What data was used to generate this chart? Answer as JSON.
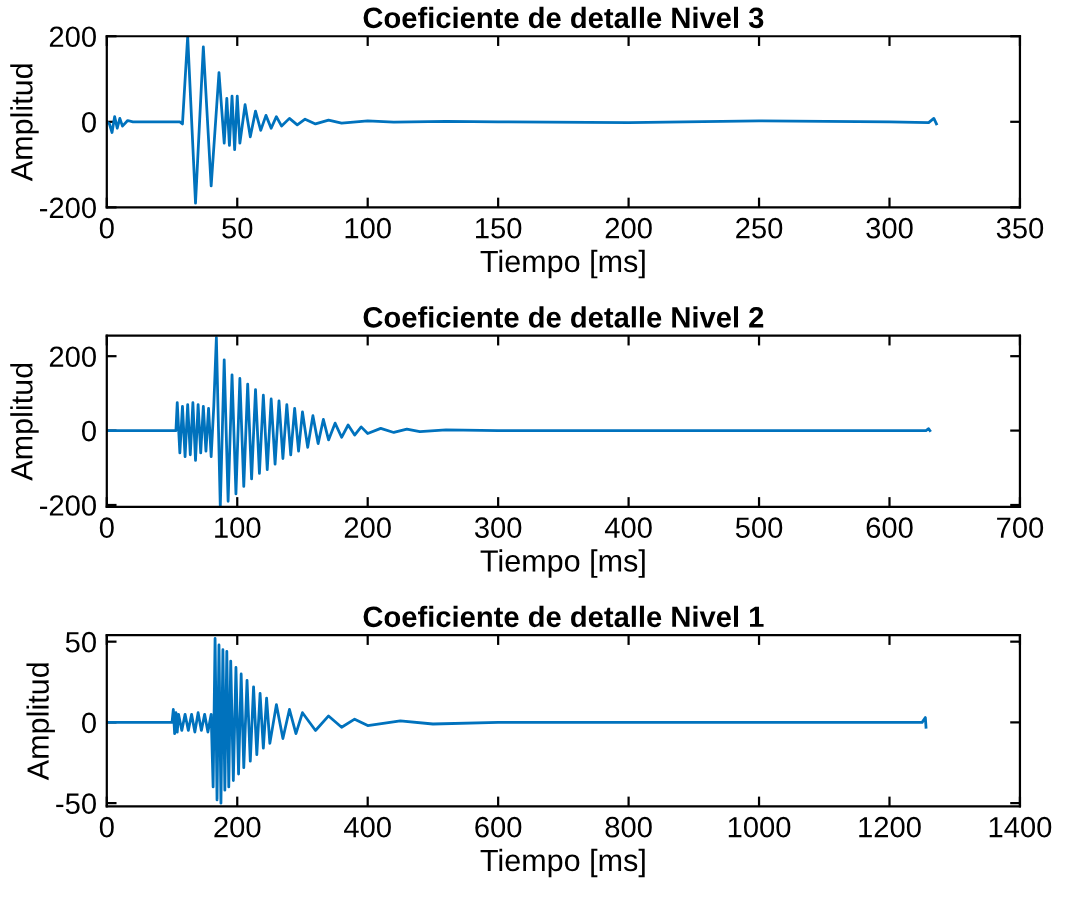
{
  "chart_data": [
    {
      "type": "line",
      "title": "Coeficiente de detalle Nivel 3",
      "xlabel": "Tiempo [ms]",
      "ylabel": "Amplitud",
      "series": [
        {
          "color": "#0072bd",
          "x": [
            0,
            1,
            2,
            3,
            4,
            5,
            6,
            8,
            10,
            28,
            29,
            31,
            34,
            37,
            40,
            43,
            45,
            46,
            47,
            48,
            49,
            50,
            51,
            53,
            55,
            57,
            59,
            61,
            63,
            65,
            67,
            70,
            73,
            76,
            80,
            85,
            90,
            100,
            110,
            130,
            150,
            200,
            250,
            300,
            315,
            317,
            318
          ],
          "values": [
            0,
            -5,
            -25,
            12,
            -15,
            8,
            -10,
            3,
            0,
            0,
            -5,
            200,
            -190,
            175,
            -150,
            115,
            -50,
            55,
            -55,
            60,
            -65,
            60,
            -50,
            40,
            -35,
            25,
            -20,
            15,
            -15,
            12,
            -10,
            8,
            -7,
            6,
            -5,
            4,
            -3,
            2,
            -1,
            1,
            0,
            -2,
            2,
            0,
            -2,
            8,
            -5
          ]
        }
      ],
      "xlim": [
        0,
        350
      ],
      "xticks": [
        0,
        50,
        100,
        150,
        200,
        250,
        300,
        350
      ],
      "ylim": [
        -200,
        200
      ],
      "yticks": [
        -200,
        0,
        200
      ],
      "grid": false
    },
    {
      "type": "line",
      "title": "Coeficiente de detalle Nivel 2",
      "xlabel": "Tiempo [ms]",
      "ylabel": "Amplitud",
      "series": [
        {
          "color": "#0072bd",
          "x": [
            0,
            50,
            53,
            54,
            56,
            58,
            60,
            62,
            64,
            66,
            68,
            70,
            72,
            74,
            76,
            78,
            80,
            82,
            84,
            87,
            90,
            93,
            96,
            99,
            102,
            105,
            108,
            111,
            114,
            117,
            120,
            123,
            126,
            129,
            132,
            135,
            138,
            141,
            144,
            147,
            150,
            154,
            158,
            162,
            166,
            170,
            175,
            180,
            185,
            190,
            195,
            200,
            210,
            220,
            230,
            240,
            260,
            300,
            400,
            500,
            628,
            630,
            631
          ],
          "values": [
            0,
            0,
            0,
            75,
            -60,
            65,
            -70,
            70,
            -65,
            75,
            -80,
            70,
            -60,
            65,
            -55,
            60,
            -70,
            65,
            250,
            -205,
            190,
            -190,
            150,
            -170,
            140,
            -150,
            125,
            -130,
            110,
            -115,
            95,
            -105,
            85,
            -90,
            80,
            -75,
            70,
            -65,
            60,
            -55,
            50,
            -45,
            40,
            -35,
            30,
            -25,
            20,
            -18,
            15,
            -12,
            10,
            -8,
            6,
            -5,
            4,
            -3,
            2,
            0,
            0,
            0,
            0,
            5,
            0
          ]
        }
      ],
      "xlim": [
        0,
        700
      ],
      "xticks": [
        0,
        100,
        200,
        300,
        400,
        500,
        600,
        700
      ],
      "ylim": [
        -205,
        255
      ],
      "yticks": [
        -200,
        0,
        200
      ],
      "grid": false
    },
    {
      "type": "line",
      "title": "Coeficiente de detalle Nivel 1",
      "xlabel": "Tiempo [ms]",
      "ylabel": "Amplitud",
      "series": [
        {
          "color": "#0072bd",
          "x": [
            0,
            100,
            102,
            104,
            106,
            108,
            110,
            115,
            120,
            125,
            130,
            135,
            140,
            145,
            150,
            155,
            160,
            163,
            166,
            169,
            172,
            175,
            178,
            181,
            184,
            187,
            190,
            194,
            198,
            202,
            206,
            210,
            215,
            220,
            225,
            230,
            235,
            240,
            245,
            250,
            260,
            270,
            280,
            290,
            300,
            320,
            340,
            360,
            380,
            400,
            450,
            500,
            600,
            800,
            1000,
            1250,
            1255,
            1256
          ],
          "values": [
            0,
            0,
            8,
            -7,
            6,
            -6,
            5,
            -5,
            5,
            -5,
            5,
            -6,
            6,
            -5,
            5,
            -6,
            5,
            -40,
            52,
            -48,
            48,
            -50,
            45,
            -42,
            44,
            -40,
            38,
            -36,
            34,
            -32,
            30,
            -28,
            26,
            -24,
            22,
            -20,
            18,
            -16,
            15,
            -13,
            11,
            -10,
            8,
            -7,
            6,
            -5,
            4,
            -3,
            2,
            -2,
            1,
            -1,
            0,
            0,
            0,
            0,
            3,
            -3
          ]
        }
      ],
      "xlim": [
        0,
        1400
      ],
      "xticks": [
        0,
        200,
        400,
        600,
        800,
        1000,
        1200,
        1400
      ],
      "ylim": [
        -52,
        54
      ],
      "yticks": [
        -50,
        0,
        50
      ],
      "grid": false
    }
  ]
}
